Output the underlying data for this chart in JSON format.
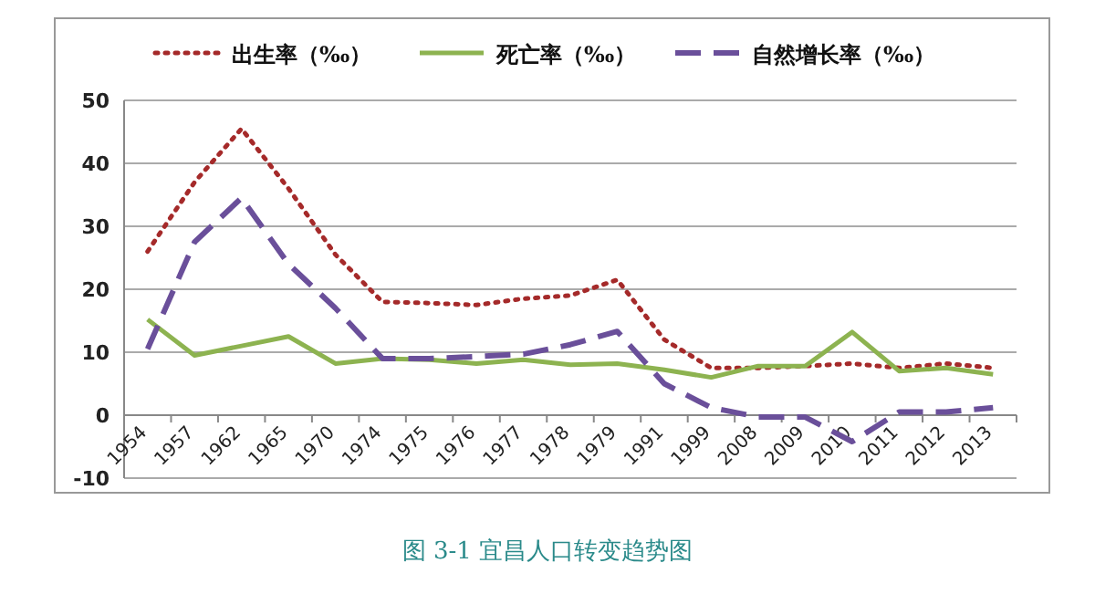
{
  "chart_data": {
    "type": "line",
    "categories": [
      "1954",
      "1957",
      "1962",
      "1965",
      "1970",
      "1974",
      "1975",
      "1976",
      "1977",
      "1978",
      "1979",
      "1991",
      "1999",
      "2008",
      "2009",
      "2010",
      "2011",
      "2012",
      "2013"
    ],
    "series": [
      {
        "name": "出生率（‰）",
        "color": "#a52a2a",
        "line_style": "dotted",
        "values": [
          26,
          37,
          45.5,
          36,
          25.5,
          18,
          17.8,
          17.5,
          18.5,
          19,
          21.5,
          12,
          7.5,
          7.5,
          7.8,
          8.2,
          7.5,
          8.2,
          7.5
        ]
      },
      {
        "name": "死亡率（‰）",
        "color": "#8db350",
        "line_style": "solid",
        "values": [
          15.2,
          9.5,
          11,
          12.5,
          8.2,
          9,
          8.8,
          8.2,
          8.8,
          8,
          8.2,
          7.2,
          6,
          7.8,
          7.8,
          13.2,
          7,
          7.5,
          6.5
        ]
      },
      {
        "name": "自然增长率（‰）",
        "color": "#6a4f9a",
        "line_style": "dashed",
        "values": [
          10.5,
          27.5,
          34.5,
          24,
          17,
          9,
          9,
          9.3,
          9.7,
          11.2,
          13.3,
          5,
          1.2,
          -0.3,
          -0.3,
          -4.2,
          0.5,
          0.5,
          1.2
        ]
      }
    ],
    "ylim": [
      -10,
      50
    ],
    "yticks": [
      -10,
      0,
      10,
      20,
      30,
      40,
      50
    ],
    "grid": "y",
    "legend": "top",
    "marker": "none",
    "annotations": [
      "图 3-1 宜昌人口转变趋势图"
    ]
  }
}
